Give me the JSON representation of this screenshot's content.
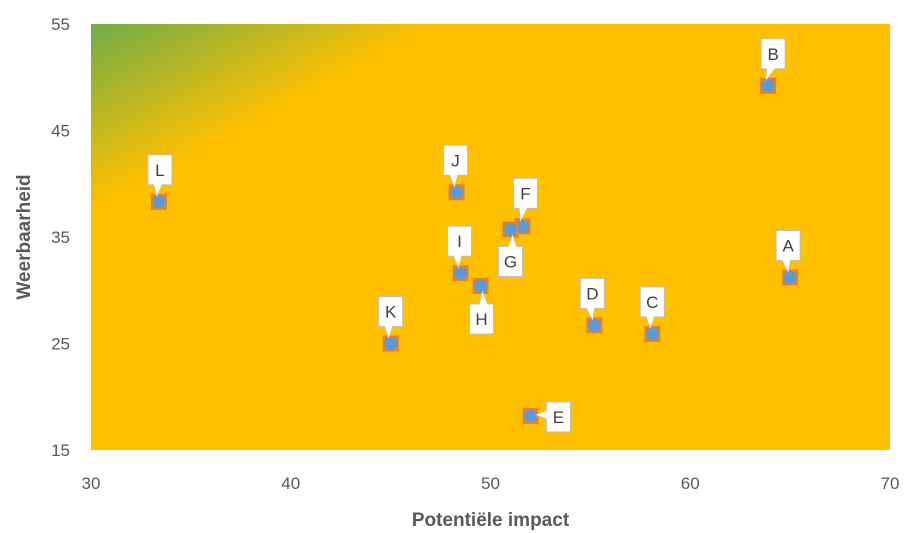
{
  "chart_data": {
    "type": "scatter",
    "title": "",
    "xlabel": "Potentiële impact",
    "ylabel": "Weerbaarheid",
    "xlim": [
      30,
      70
    ],
    "ylim": [
      15,
      55
    ],
    "xticks": [
      "30",
      "40",
      "50",
      "60",
      "70"
    ],
    "yticks": [
      "15",
      "25",
      "35",
      "45",
      "55"
    ],
    "grid": false,
    "legend": "none",
    "background": {
      "fill": "#FFC000",
      "gradient_corner": "top-left",
      "gradient_color": "#70AD47"
    },
    "marker": {
      "fill": "#5B9BD5",
      "outline": "#ED7D31"
    },
    "points": [
      {
        "label": "A",
        "x": 65.0,
        "y": 31.2
      },
      {
        "label": "B",
        "x": 63.9,
        "y": 49.2
      },
      {
        "label": "C",
        "x": 58.1,
        "y": 25.9
      },
      {
        "label": "D",
        "x": 55.2,
        "y": 26.7
      },
      {
        "label": "E",
        "x": 52.0,
        "y": 18.2
      },
      {
        "label": "F",
        "x": 51.6,
        "y": 36.0
      },
      {
        "label": "G",
        "x": 51.0,
        "y": 35.7
      },
      {
        "label": "H",
        "x": 49.5,
        "y": 30.4
      },
      {
        "label": "I",
        "x": 48.5,
        "y": 31.6
      },
      {
        "label": "J",
        "x": 48.3,
        "y": 39.2
      },
      {
        "label": "K",
        "x": 45.0,
        "y": 25.0
      },
      {
        "label": "L",
        "x": 33.4,
        "y": 38.3
      }
    ]
  }
}
